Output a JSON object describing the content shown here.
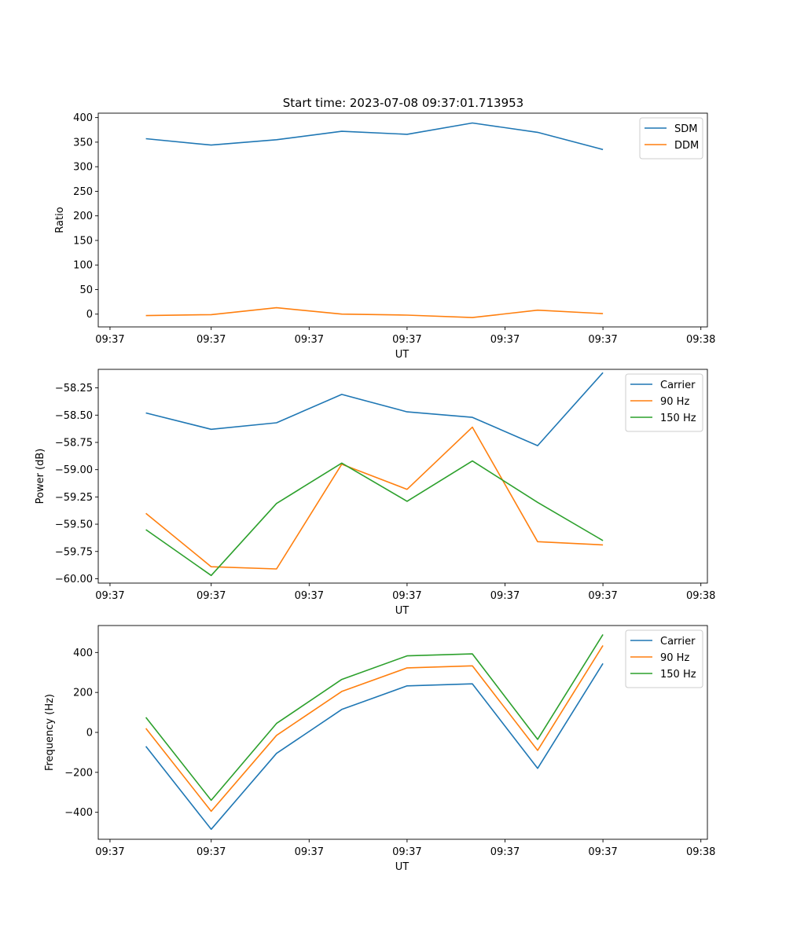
{
  "figure_title": "Start time: 2023-07-08 09:37:01.713953",
  "colors": {
    "blue": "#1f77b4",
    "orange": "#ff7f0e",
    "green": "#2ca02c"
  },
  "chart_data": [
    {
      "type": "line",
      "title": "Start time: 2023-07-08 09:37:01.713953",
      "xlabel": "UT",
      "ylabel": "Ratio",
      "x": [
        1,
        2,
        3,
        4,
        5,
        6,
        7,
        8
      ],
      "xlim": [
        0.27,
        9.6
      ],
      "x_ticks": [
        0.45,
        2.0,
        3.5,
        5.0,
        6.5,
        8.0,
        9.5
      ],
      "x_tick_labels": [
        "09:37",
        "09:37",
        "09:37",
        "09:37",
        "09:37",
        "09:37",
        "09:38"
      ],
      "ylim": [
        -26,
        409
      ],
      "y_ticks": [
        0,
        50,
        100,
        150,
        200,
        250,
        300,
        350,
        400
      ],
      "y_tick_labels": [
        "0",
        "50",
        "100",
        "150",
        "200",
        "250",
        "300",
        "350",
        "400"
      ],
      "legend_position": "top-right",
      "series": [
        {
          "name": "SDM",
          "color": "#1f77b4",
          "values": [
            357,
            344,
            355,
            372,
            366,
            389,
            370,
            335
          ]
        },
        {
          "name": "DDM",
          "color": "#ff7f0e",
          "values": [
            -3,
            -1,
            13,
            0,
            -2,
            -7,
            8,
            1
          ]
        }
      ]
    },
    {
      "type": "line",
      "title": "",
      "xlabel": "UT",
      "ylabel": "Power (dB)",
      "x": [
        1,
        2,
        3,
        4,
        5,
        6,
        7,
        8
      ],
      "xlim": [
        0.27,
        9.6
      ],
      "x_ticks": [
        0.45,
        2.0,
        3.5,
        5.0,
        6.5,
        8.0,
        9.5
      ],
      "x_tick_labels": [
        "09:37",
        "09:37",
        "09:37",
        "09:37",
        "09:37",
        "09:37",
        "09:38"
      ],
      "ylim": [
        -60.04,
        -58.08
      ],
      "y_ticks": [
        -60.0,
        -59.75,
        -59.5,
        -59.25,
        -59.0,
        -58.75,
        -58.5,
        -58.25
      ],
      "y_tick_labels": [
        "−60.00",
        "−59.75",
        "−59.50",
        "−59.25",
        "−59.00",
        "−58.75",
        "−58.50",
        "−58.25"
      ],
      "legend_position": "top-right",
      "series": [
        {
          "name": "Carrier",
          "color": "#1f77b4",
          "values": [
            -58.48,
            -58.63,
            -58.57,
            -58.31,
            -58.47,
            -58.52,
            -58.78,
            -58.11
          ]
        },
        {
          "name": "90 Hz",
          "color": "#ff7f0e",
          "values": [
            -59.4,
            -59.89,
            -59.91,
            -58.95,
            -59.18,
            -58.61,
            -59.66,
            -59.69
          ]
        },
        {
          "name": "150 Hz",
          "color": "#2ca02c",
          "values": [
            -59.55,
            -59.97,
            -59.31,
            -58.94,
            -59.29,
            -58.92,
            -59.3,
            -59.65
          ]
        }
      ]
    },
    {
      "type": "line",
      "title": "",
      "xlabel": "UT",
      "ylabel": "Frequency (Hz)",
      "x": [
        1,
        2,
        3,
        4,
        5,
        6,
        7,
        8
      ],
      "xlim": [
        0.27,
        9.6
      ],
      "x_ticks": [
        0.45,
        2.0,
        3.5,
        5.0,
        6.5,
        8.0,
        9.5
      ],
      "x_tick_labels": [
        "09:37",
        "09:37",
        "09:37",
        "09:37",
        "09:37",
        "09:37",
        "09:38"
      ],
      "ylim": [
        -535,
        535
      ],
      "y_ticks": [
        -400,
        -200,
        0,
        200,
        400
      ],
      "y_tick_labels": [
        "−400",
        "−200",
        "0",
        "200",
        "400"
      ],
      "legend_position": "top-right",
      "series": [
        {
          "name": "Carrier",
          "color": "#1f77b4",
          "values": [
            -70,
            -485,
            -105,
            115,
            233,
            243,
            -180,
            345
          ]
        },
        {
          "name": "90 Hz",
          "color": "#ff7f0e",
          "values": [
            20,
            -395,
            -15,
            205,
            323,
            333,
            -90,
            435
          ]
        },
        {
          "name": "150 Hz",
          "color": "#2ca02c",
          "values": [
            75,
            -340,
            45,
            265,
            383,
            393,
            -35,
            490
          ]
        }
      ]
    }
  ]
}
